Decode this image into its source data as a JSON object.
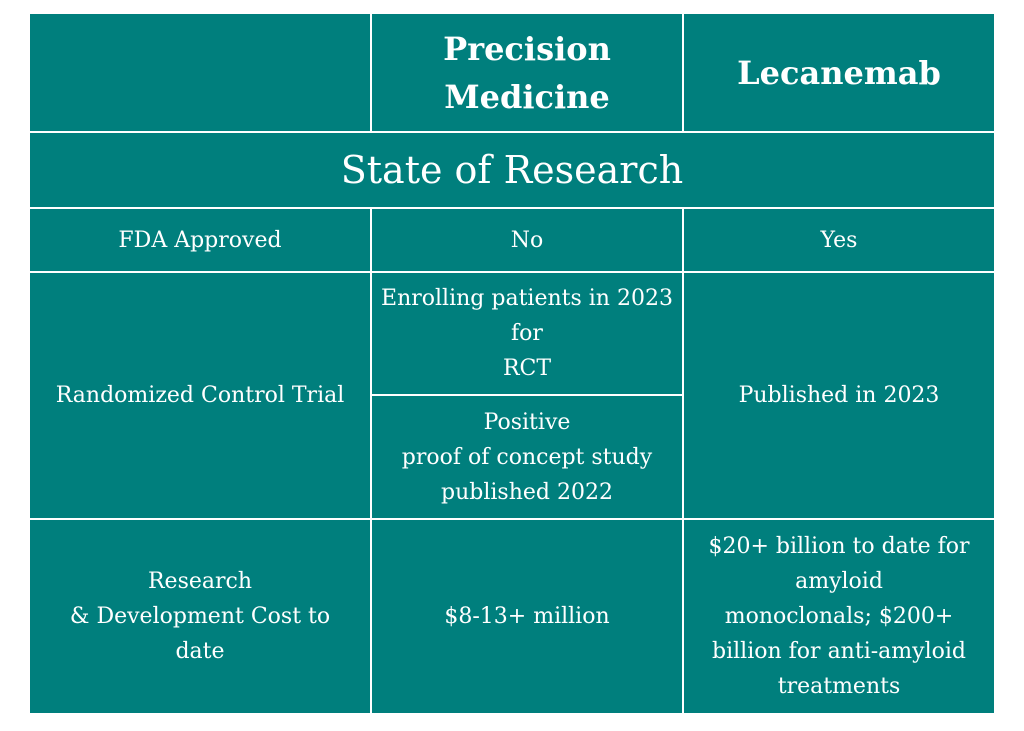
{
  "table": {
    "header": {
      "corner": "",
      "col1": "Precision\nMedicine",
      "col2": "Lecanemab"
    },
    "section_title": "State of Research",
    "rows": {
      "fda": {
        "label": "FDA Approved",
        "col1": "No",
        "col2": "Yes"
      },
      "rct": {
        "label": "Randomized Control Trial",
        "col1_top": "Enrolling patients in 2023\nfor\nRCT",
        "col1_bottom": "Positive\nproof of concept study\npublished 2022",
        "col2": "Published in 2023"
      },
      "cost": {
        "label": "Research\n& Development Cost to\ndate",
        "col1": "$8-13+ million",
        "col2": "$20+ billion to date for\namyloid\nmonoclonals; $200+\nbillion for anti-amyloid\ntreatments"
      }
    }
  }
}
